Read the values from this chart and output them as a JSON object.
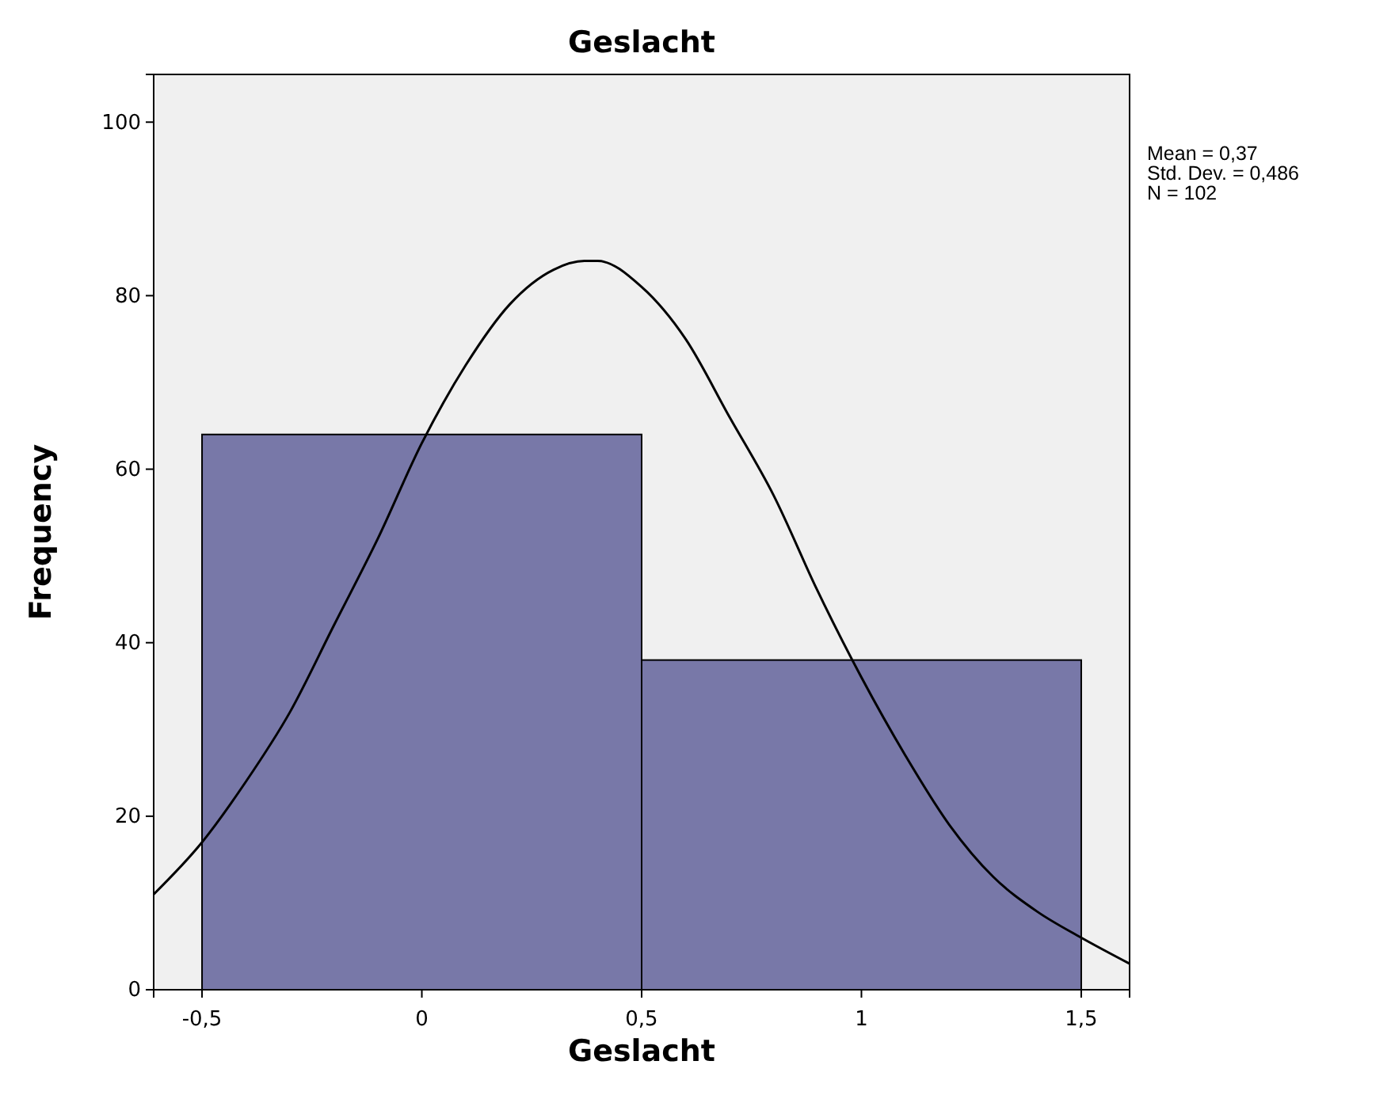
{
  "chart_data": {
    "type": "histogram",
    "title": "Geslacht",
    "xlabel": "Geslacht",
    "ylabel": "Frequency",
    "bins": [
      -0.5,
      0.5,
      1.5
    ],
    "values": [
      64,
      38
    ],
    "color": "#7878a8",
    "series": [
      {
        "type": "line",
        "color": "#000000",
        "x": [
          -0.61,
          -0.5,
          -0.4,
          -0.3,
          -0.2,
          -0.1,
          0,
          0.1,
          0.2,
          0.3,
          0.37,
          0.4,
          0.5,
          0.6,
          0.7,
          0.8,
          0.9,
          1.0,
          1.1,
          1.2,
          1.3,
          1.4,
          1.5,
          1.61
        ],
        "values": [
          11,
          17,
          24,
          32,
          42,
          52,
          63,
          72,
          79,
          83,
          84,
          84,
          81,
          75,
          66,
          57,
          46,
          36,
          27,
          19,
          13,
          9,
          6,
          3
        ]
      }
    ],
    "xlim": [
      -0.61,
      1.61
    ],
    "xticks": [
      {
        "value": -0.5,
        "label": "-0,5"
      },
      0,
      {
        "value": 0.5,
        "label": "0,5"
      },
      1,
      {
        "value": 1.5,
        "label": "1,5"
      }
    ],
    "ylim": [
      0,
      105.5
    ],
    "yticks": [
      0,
      20,
      40,
      60,
      80,
      100
    ],
    "grid": false,
    "annotations": [
      "Mean = 0,37",
      "Std. Dev. = 0,486",
      "N = 102"
    ]
  }
}
